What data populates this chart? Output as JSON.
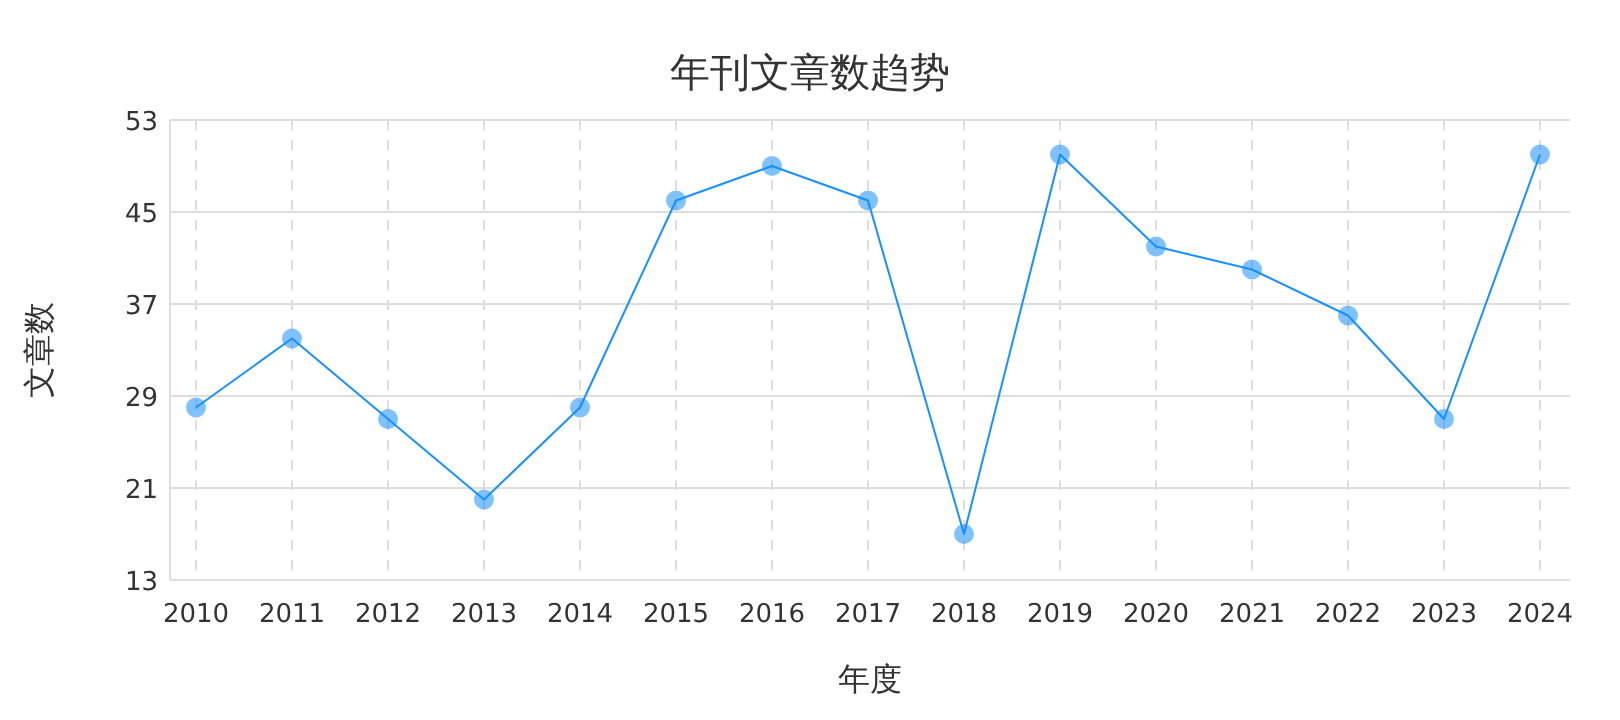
{
  "chart_data": {
    "type": "line",
    "title": "年刊文章数趋势",
    "xlabel": "年度",
    "ylabel": "文章数",
    "categories": [
      "2010",
      "2011",
      "2012",
      "2013",
      "2014",
      "2015",
      "2016",
      "2017",
      "2018",
      "2019",
      "2020",
      "2021",
      "2022",
      "2023",
      "2024"
    ],
    "series": [
      {
        "color": "#1890ff",
        "values": [
          28,
          34,
          27,
          20,
          28,
          46,
          49,
          46,
          17,
          50,
          42,
          40,
          36,
          27,
          50
        ]
      }
    ],
    "ylim": [
      13,
      53
    ],
    "yticks": [
      13,
      21,
      29,
      37,
      45,
      53
    ],
    "grid": true,
    "marker": "circle",
    "line_style": "solid"
  }
}
